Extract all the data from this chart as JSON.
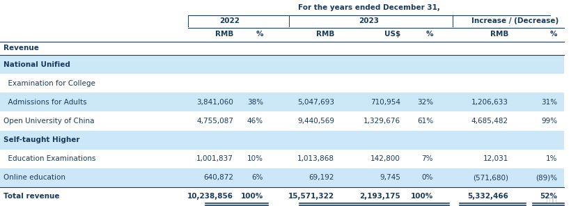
{
  "title": "For the years ended December 31,",
  "background_color": "#ffffff",
  "light_bg": "#cce8f8",
  "text_color": "#1a3a5c",
  "col_headers_level2": [
    "RMB",
    "%",
    "RMB",
    "US$",
    "%",
    "RMB",
    "%"
  ],
  "row_label_header": "Revenue",
  "rows": [
    {
      "label": "National Unified",
      "indent": 0,
      "data": [
        "",
        "",
        "",
        "",
        "",
        "",
        ""
      ],
      "type": "section_header",
      "bg": "light"
    },
    {
      "label": "  Examination for College",
      "indent": 1,
      "data": [
        "",
        "",
        "",
        "",
        "",
        "",
        ""
      ],
      "type": "sub_header",
      "bg": "white"
    },
    {
      "label": "  Admissions for Adults",
      "indent": 1,
      "data": [
        "3,841,060",
        "38%",
        "5,047,693",
        "710,954",
        "32%",
        "1,206,633",
        "31%"
      ],
      "type": "data",
      "bg": "light"
    },
    {
      "label": "Open University of China",
      "indent": 0,
      "data": [
        "4,755,087",
        "46%",
        "9,440,569",
        "1,329,676",
        "61%",
        "4,685,482",
        "99%"
      ],
      "type": "data",
      "bg": "white"
    },
    {
      "label": "Self-taught Higher",
      "indent": 0,
      "data": [
        "",
        "",
        "",
        "",
        "",
        "",
        ""
      ],
      "type": "section_header",
      "bg": "light"
    },
    {
      "label": "  Education Examinations",
      "indent": 1,
      "data": [
        "1,001,837",
        "10%",
        "1,013,868",
        "142,800",
        "7%",
        "12,031",
        "1%"
      ],
      "type": "data",
      "bg": "white"
    },
    {
      "label": "Online education",
      "indent": 0,
      "data": [
        "640,872",
        "6%",
        "69,192",
        "9,745",
        "0%",
        "(571,680)",
        "(89)%"
      ],
      "type": "data",
      "bg": "light"
    },
    {
      "label": "Total revenue",
      "indent": 0,
      "data": [
        "10,238,856",
        "100%",
        "15,571,322",
        "2,193,175",
        "100%",
        "5,332,466",
        "52%"
      ],
      "type": "total",
      "bg": "white"
    }
  ],
  "font_size": 7.5,
  "title_font_size": 7.5,
  "header_font_size": 7.5
}
